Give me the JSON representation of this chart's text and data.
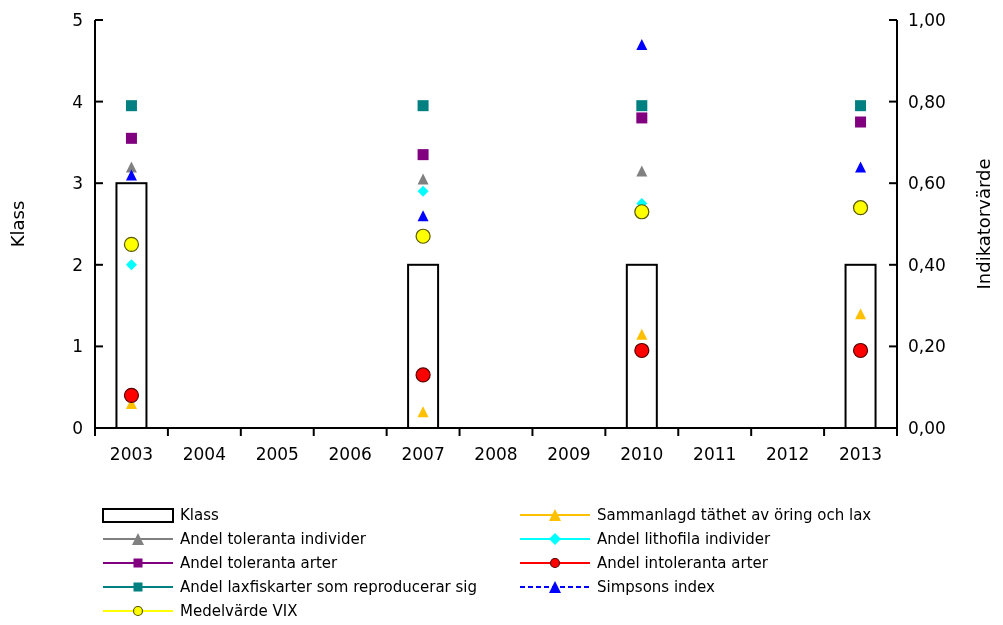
{
  "chart_data": {
    "type": "bar",
    "categories": [
      "2003",
      "2004",
      "2005",
      "2006",
      "2007",
      "2008",
      "2009",
      "2010",
      "2011",
      "2012",
      "2013"
    ],
    "ylabel": "Klass",
    "y2label": "Indikatorvärde",
    "ylim": [
      0,
      5
    ],
    "yticks": [
      0,
      1,
      2,
      3,
      4,
      5
    ],
    "y2lim": [
      0,
      1
    ],
    "y2ticks": [
      {
        "value": 0,
        "label": "0,00"
      },
      {
        "value": 0.2,
        "label": "0,20"
      },
      {
        "value": 0.4,
        "label": "0,40"
      },
      {
        "value": 0.6,
        "label": "0,60"
      },
      {
        "value": 0.8,
        "label": "0,80"
      },
      {
        "value": 1,
        "label": "1,00"
      }
    ],
    "grid": false,
    "legend": "bottom",
    "series": [
      {
        "name": "Klass",
        "color": "#ffffff",
        "values": [
          3,
          null,
          null,
          null,
          2,
          null,
          null,
          2,
          null,
          null,
          2
        ]
      },
      {
        "name": "Sammanlagd täthet av öring och lax",
        "type": "scatter",
        "axis": "y2",
        "color": "#ffc000",
        "marker": "triangle",
        "values": [
          0.06,
          null,
          null,
          null,
          0.04,
          null,
          null,
          0.23,
          null,
          null,
          0.28
        ]
      },
      {
        "name": "Andel toleranta individer",
        "type": "scatter",
        "axis": "y2",
        "color": "#808080",
        "marker": "triangle",
        "values": [
          0.64,
          null,
          null,
          null,
          0.61,
          null,
          null,
          0.63,
          null,
          null,
          null
        ]
      },
      {
        "name": "Andel lithofila individer",
        "type": "scatter",
        "axis": "y2",
        "color": "#00ffff",
        "marker": "diamond",
        "values": [
          0.4,
          null,
          null,
          null,
          0.58,
          null,
          null,
          0.55,
          null,
          null,
          null
        ]
      },
      {
        "name": "Andel toleranta arter",
        "type": "scatter",
        "axis": "y2",
        "color": "#800080",
        "marker": "square",
        "values": [
          0.71,
          null,
          null,
          null,
          0.67,
          null,
          null,
          0.76,
          null,
          null,
          0.75
        ]
      },
      {
        "name": "Andel intoleranta arter",
        "type": "scatter",
        "axis": "y2",
        "color": "#ff0000",
        "marker": "circle",
        "values": [
          0.08,
          null,
          null,
          null,
          0.13,
          null,
          null,
          0.19,
          null,
          null,
          0.19
        ]
      },
      {
        "name": "Andel laxfiskarter som reproducerar sig",
        "type": "scatter",
        "axis": "y2",
        "color": "#008080",
        "marker": "square",
        "values": [
          0.79,
          null,
          null,
          null,
          0.79,
          null,
          null,
          0.79,
          null,
          null,
          0.79
        ]
      },
      {
        "name": "Simpsons index",
        "type": "scatter",
        "axis": "y2",
        "color": "#0000ff",
        "marker": "triangle",
        "line_style": "dashed",
        "values": [
          0.62,
          null,
          null,
          null,
          0.52,
          null,
          null,
          0.94,
          null,
          null,
          0.64
        ]
      },
      {
        "name": "Medelvärde VIX",
        "type": "scatter",
        "axis": "y2",
        "color": "#ffff00",
        "marker": "circle",
        "values": [
          0.45,
          null,
          null,
          null,
          0.47,
          null,
          null,
          0.53,
          null,
          null,
          0.54
        ]
      }
    ]
  }
}
